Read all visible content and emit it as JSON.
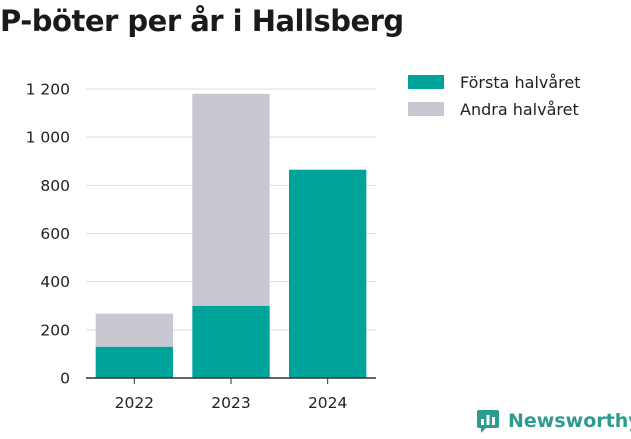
{
  "title": "P-böter per år i Hallsberg",
  "brand": {
    "name": "Newsworthy",
    "icon": "newsworthy-logo-icon",
    "color": "#2e9b8f"
  },
  "colors": {
    "first_half": "#00a39a",
    "second_half": "#c8c7d2",
    "grid": "#dddddd",
    "axis": "#333333"
  },
  "legend": [
    "Första halvåret",
    "Andra halvåret"
  ],
  "chart_data": {
    "type": "bar",
    "stacked": true,
    "title": "P-böter per år i Hallsberg",
    "categories": [
      "2022",
      "2023",
      "2024"
    ],
    "series": [
      {
        "name": "Första halvåret",
        "values": [
          130,
          300,
          865
        ]
      },
      {
        "name": "Andra halvåret",
        "values": [
          137,
          880,
          0
        ]
      }
    ],
    "ylim": [
      0,
      1200
    ],
    "yticks": [
      0,
      200,
      400,
      600,
      800,
      1000,
      1200
    ],
    "ytick_labels": [
      "0",
      "200",
      "400",
      "600",
      "800",
      "1 000",
      "1 200"
    ],
    "grid": true,
    "legend_position": "top-right",
    "xlabel": "",
    "ylabel": ""
  }
}
